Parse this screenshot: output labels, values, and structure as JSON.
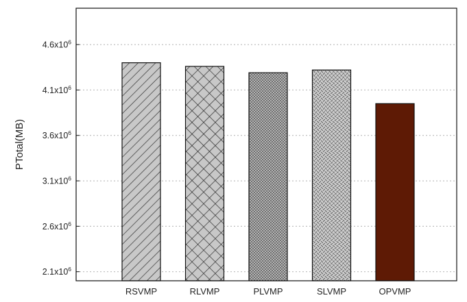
{
  "chart_data": {
    "type": "bar",
    "title": "",
    "xlabel": "",
    "ylabel": "PTotal(MB)",
    "categories": [
      "RSVMP",
      "RLVMP",
      "PLVMP",
      "SLVMP",
      "OPVMP"
    ],
    "values": [
      4400000,
      4360000,
      4290000,
      4320000,
      3950000
    ],
    "ylim": [
      2000000,
      5000000
    ],
    "yticks": [
      2100000,
      2600000,
      3100000,
      3600000,
      4100000,
      4600000
    ],
    "ytick_labels": [
      {
        "mantissa": "2.1x10",
        "exp": "6"
      },
      {
        "mantissa": "2.6x10",
        "exp": "6"
      },
      {
        "mantissa": "3.1x10",
        "exp": "6"
      },
      {
        "mantissa": "3.6x10",
        "exp": "6"
      },
      {
        "mantissa": "4.1x10",
        "exp": "6"
      },
      {
        "mantissa": "4.6x10",
        "exp": "6"
      }
    ],
    "grid": true,
    "legend": "none",
    "bar_fills": [
      {
        "pattern": "diagonal-hatch",
        "color": "#c8c8c8"
      },
      {
        "pattern": "cross-hatch",
        "color": "#c8c8c8"
      },
      {
        "pattern": "dense-dots",
        "color": "#909090"
      },
      {
        "pattern": "weave",
        "color": "#c8c8c8"
      },
      {
        "pattern": "solid",
        "color": "#5e1a05"
      }
    ]
  }
}
